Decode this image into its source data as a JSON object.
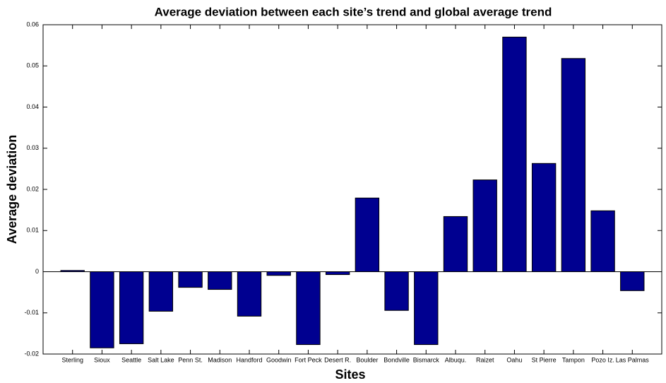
{
  "chart_data": {
    "type": "bar",
    "title": "Average deviation between each site’s trend and global average trend",
    "x_label": "Sites",
    "y_label": "Average deviation",
    "categories": [
      "Sterling",
      "Sioux",
      "Seattle",
      "Salt Lake",
      "Penn St.",
      "Madison",
      "Handford",
      "Goodwin",
      "Fort Peck",
      "Desert R.",
      "Boulder",
      "Bondville",
      "Bismarck",
      "Albuqu.",
      "Raizet",
      "Oahu",
      "St Pierre",
      "Tampon",
      "Pozo Iz.",
      "Las Palmas"
    ],
    "values": [
      0.0003,
      -0.0185,
      -0.0175,
      -0.0096,
      -0.0038,
      -0.0043,
      -0.0108,
      -0.0009,
      -0.0177,
      -0.0007,
      0.0179,
      -0.0094,
      -0.0177,
      0.0134,
      0.0223,
      0.057,
      0.0263,
      0.0518,
      0.0148,
      -0.0046
    ],
    "color": "#000090",
    "ylim": [
      -0.02,
      0.06
    ],
    "yticks": [
      -0.02,
      -0.01,
      0,
      0.01,
      0.02,
      0.03,
      0.04,
      0.05,
      0.06
    ],
    "grid": false
  }
}
